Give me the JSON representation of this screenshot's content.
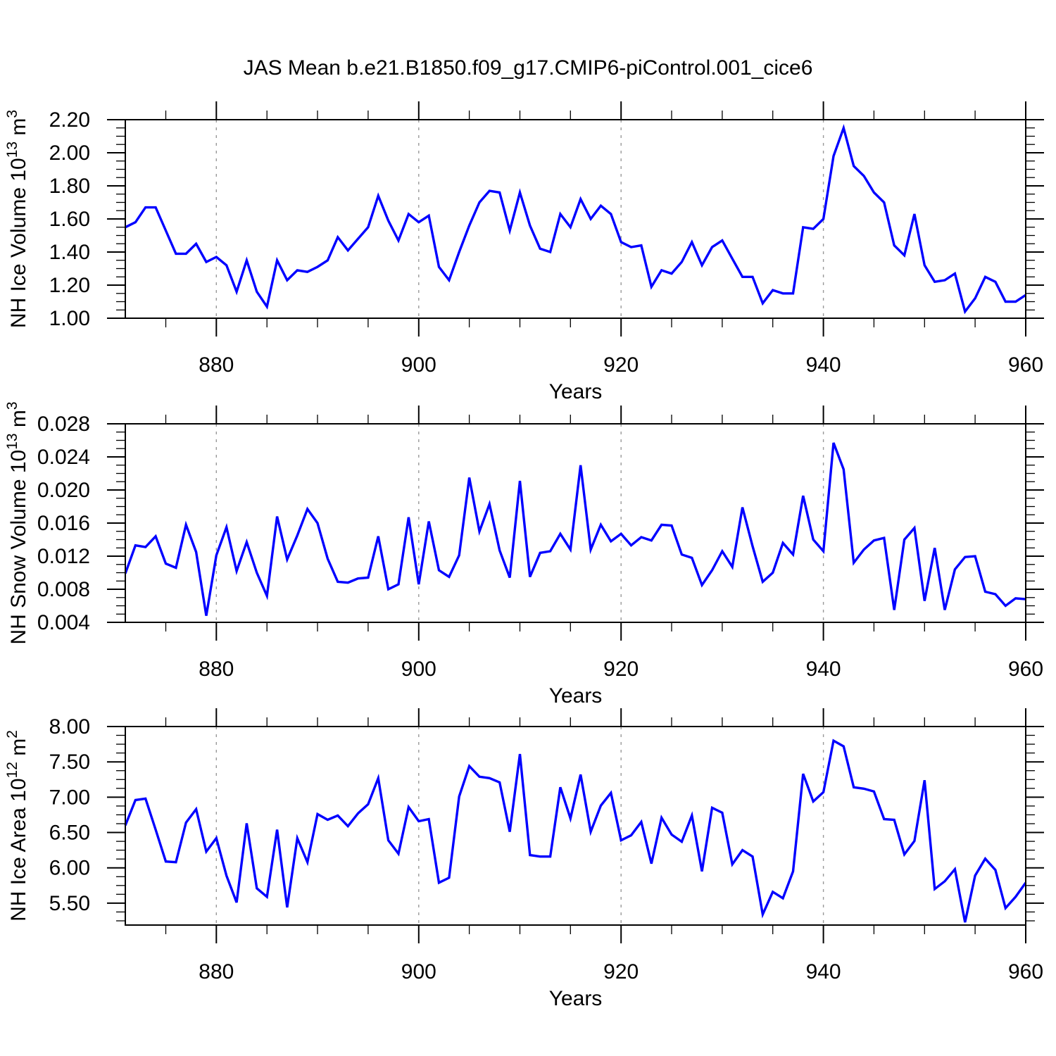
{
  "title": "JAS Mean b.e21.B1850.f09_g17.CMIP6-piControl.001_cice6",
  "style": {
    "line_color": "#0000ff",
    "grid_color": "#999999",
    "frame_color": "#000000",
    "text_color": "#000000"
  },
  "chart_data": [
    {
      "id": "nh-ice-volume",
      "type": "line",
      "ylabel": "NH Ice Volume 10^13 m^3",
      "ylabel_parts": [
        {
          "text": "NH Ice Volume 10",
          "sup": false
        },
        {
          "text": "13",
          "sup": true
        },
        {
          "text": " m",
          "sup": false
        },
        {
          "text": "3",
          "sup": true
        }
      ],
      "xlabel": "Years",
      "xlim": [
        871,
        960
      ],
      "x_step": 1,
      "xticks": [
        880,
        900,
        920,
        940,
        960
      ],
      "xtick_labels": [
        "880",
        "900",
        "920",
        "940",
        "960"
      ],
      "x_minor_step": 5,
      "grid_x": [
        880,
        900,
        920,
        940
      ],
      "ylim": [
        1.0,
        2.2
      ],
      "yticks": [
        1.0,
        1.2,
        1.4,
        1.6,
        1.8,
        2.0,
        2.2
      ],
      "ytick_labels": [
        "1.00",
        "1.20",
        "1.40",
        "1.60",
        "1.80",
        "2.00",
        "2.20"
      ],
      "y_minor_step": 0.05,
      "grid": "x-dashed",
      "legend": "none",
      "values": [
        1.55,
        1.58,
        1.67,
        1.67,
        1.53,
        1.39,
        1.39,
        1.45,
        1.34,
        1.37,
        1.32,
        1.16,
        1.35,
        1.16,
        1.07,
        1.35,
        1.23,
        1.29,
        1.28,
        1.31,
        1.35,
        1.49,
        1.41,
        1.48,
        1.55,
        1.74,
        1.59,
        1.47,
        1.63,
        1.58,
        1.62,
        1.31,
        1.23,
        1.4,
        1.56,
        1.7,
        1.77,
        1.76,
        1.53,
        1.76,
        1.56,
        1.42,
        1.4,
        1.63,
        1.55,
        1.72,
        1.6,
        1.68,
        1.63,
        1.46,
        1.43,
        1.44,
        1.19,
        1.29,
        1.27,
        1.34,
        1.46,
        1.32,
        1.43,
        1.47,
        1.36,
        1.25,
        1.25,
        1.09,
        1.17,
        1.15,
        1.15,
        1.55,
        1.54,
        1.6,
        1.98,
        2.15,
        1.92,
        1.86,
        1.76,
        1.7,
        1.44,
        1.38,
        1.63,
        1.32,
        1.22,
        1.23,
        1.27,
        1.04,
        1.12,
        1.25,
        1.22,
        1.1,
        1.1,
        1.14
      ]
    },
    {
      "id": "nh-snow-volume",
      "type": "line",
      "ylabel": "NH Snow Volume 10^13 m^3",
      "ylabel_parts": [
        {
          "text": "NH Snow Volume 10",
          "sup": false
        },
        {
          "text": "13",
          "sup": true
        },
        {
          "text": " m",
          "sup": false
        },
        {
          "text": "3",
          "sup": true
        }
      ],
      "xlabel": "Years",
      "xlim": [
        871,
        960
      ],
      "x_step": 1,
      "xticks": [
        880,
        900,
        920,
        940,
        960
      ],
      "xtick_labels": [
        "880",
        "900",
        "920",
        "940",
        "960"
      ],
      "x_minor_step": 5,
      "grid_x": [
        880,
        900,
        920,
        940
      ],
      "ylim": [
        0.004,
        0.028
      ],
      "yticks": [
        0.004,
        0.008,
        0.012,
        0.016,
        0.02,
        0.024,
        0.028
      ],
      "ytick_labels": [
        "0.004",
        "0.008",
        "0.012",
        "0.016",
        "0.020",
        "0.024",
        "0.028"
      ],
      "y_minor_step": 0.001,
      "grid": "x-dashed",
      "legend": "none",
      "values": [
        0.0099,
        0.0133,
        0.0131,
        0.0144,
        0.0111,
        0.0106,
        0.0158,
        0.0125,
        0.0048,
        0.0121,
        0.0155,
        0.0102,
        0.0137,
        0.01,
        0.0072,
        0.0168,
        0.0116,
        0.0145,
        0.0177,
        0.016,
        0.0117,
        0.0089,
        0.0088,
        0.0093,
        0.0094,
        0.0144,
        0.008,
        0.0086,
        0.0167,
        0.0086,
        0.0162,
        0.0103,
        0.0095,
        0.0121,
        0.0215,
        0.015,
        0.0183,
        0.0127,
        0.0094,
        0.0211,
        0.0095,
        0.0124,
        0.0126,
        0.0147,
        0.0128,
        0.023,
        0.0128,
        0.0158,
        0.0138,
        0.0147,
        0.0133,
        0.0143,
        0.0139,
        0.0158,
        0.0157,
        0.0122,
        0.0118,
        0.0085,
        0.0103,
        0.0126,
        0.0107,
        0.0179,
        0.0132,
        0.0089,
        0.01,
        0.0136,
        0.0122,
        0.0193,
        0.014,
        0.0126,
        0.0257,
        0.0225,
        0.0112,
        0.0128,
        0.0139,
        0.0142,
        0.0055,
        0.014,
        0.0154,
        0.0066,
        0.013,
        0.0055,
        0.0104,
        0.0119,
        0.012,
        0.0077,
        0.0074,
        0.006,
        0.0069,
        0.0068
      ]
    },
    {
      "id": "nh-ice-area",
      "type": "line",
      "ylabel": "NH Ice Area 10^12 m^2",
      "ylabel_parts": [
        {
          "text": "NH Ice Area 10",
          "sup": false
        },
        {
          "text": "12",
          "sup": true
        },
        {
          "text": " m",
          "sup": false
        },
        {
          "text": "2",
          "sup": true
        }
      ],
      "xlabel": "Years",
      "xlim": [
        871,
        960
      ],
      "x_step": 1,
      "xticks": [
        880,
        900,
        920,
        940,
        960
      ],
      "xtick_labels": [
        "880",
        "900",
        "920",
        "940",
        "960"
      ],
      "x_minor_step": 5,
      "grid_x": [
        880,
        900,
        920,
        940
      ],
      "ylim": [
        5.19,
        8.0
      ],
      "yticks": [
        5.5,
        6.0,
        6.5,
        7.0,
        7.5,
        8.0
      ],
      "ytick_labels": [
        "5.50",
        "6.00",
        "6.50",
        "7.00",
        "7.50",
        "8.00"
      ],
      "y_minor_step": 0.125,
      "grid": "x-dashed",
      "legend": "none",
      "values": [
        6.6,
        6.96,
        6.98,
        6.54,
        6.09,
        6.08,
        6.64,
        6.83,
        6.23,
        6.42,
        5.89,
        5.51,
        6.63,
        5.71,
        5.59,
        6.54,
        5.44,
        6.42,
        6.08,
        6.76,
        6.68,
        6.74,
        6.59,
        6.77,
        6.9,
        7.27,
        6.39,
        6.2,
        6.86,
        6.66,
        6.69,
        5.79,
        5.86,
        7.01,
        7.44,
        7.29,
        7.27,
        7.21,
        6.51,
        7.61,
        6.18,
        6.16,
        6.16,
        7.14,
        6.7,
        7.32,
        6.51,
        6.88,
        7.06,
        6.39,
        6.46,
        6.65,
        6.06,
        6.71,
        6.47,
        6.37,
        6.74,
        5.95,
        6.85,
        6.78,
        6.05,
        6.25,
        6.16,
        5.34,
        5.66,
        5.57,
        5.95,
        7.33,
        6.94,
        7.07,
        7.8,
        7.72,
        7.14,
        7.12,
        7.08,
        6.69,
        6.68,
        6.19,
        6.38,
        7.24,
        5.7,
        5.81,
        5.98,
        5.23,
        5.89,
        6.13,
        5.97,
        5.43,
        5.59,
        5.79
      ]
    }
  ]
}
